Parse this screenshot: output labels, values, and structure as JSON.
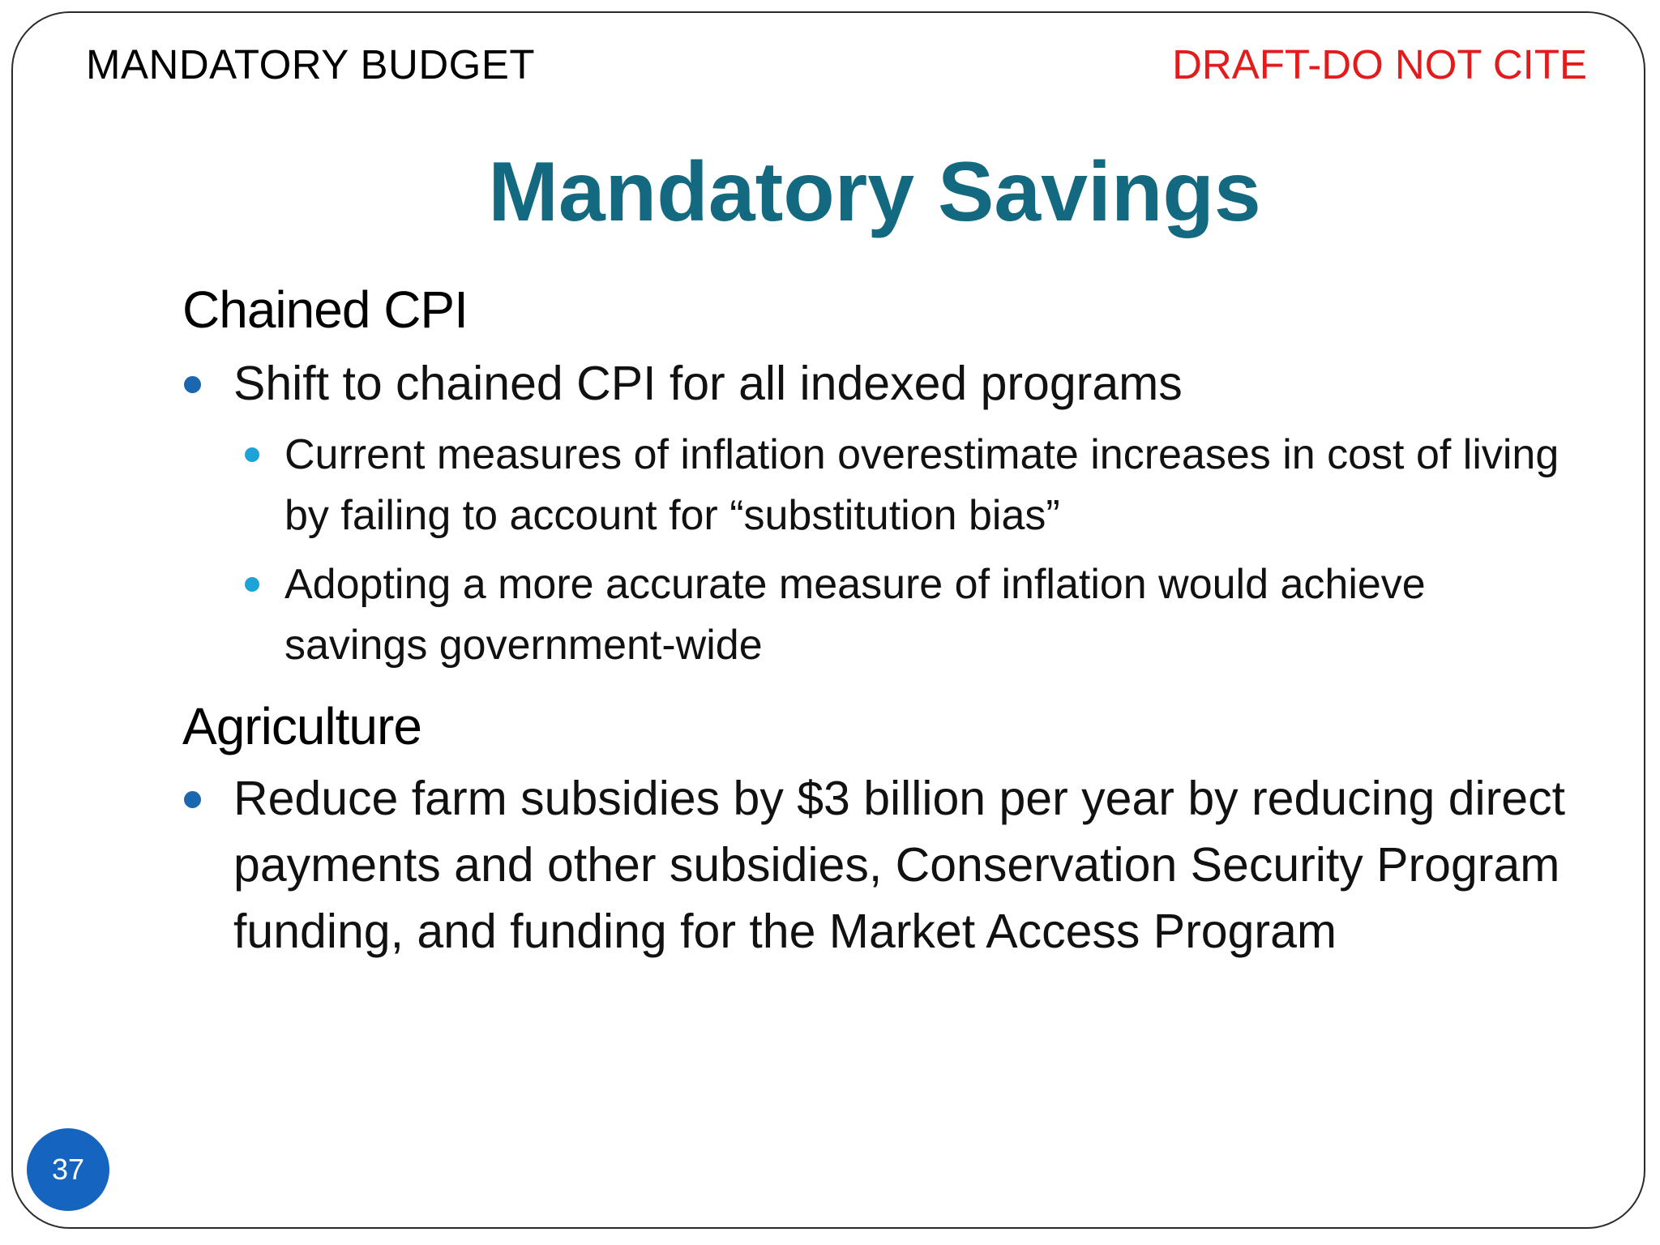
{
  "header": {
    "left": "MANDATORY BUDGET",
    "right": "DRAFT-DO NOT CITE"
  },
  "title": "Mandatory Savings",
  "sections": [
    {
      "heading": "Chained CPI",
      "bullet": "Shift to chained CPI for all indexed programs",
      "subbullets": [
        "Current measures of inflation overestimate increases in cost of living by failing to account for “substitution bias”",
        "Adopting a more accurate measure of inflation would achieve savings government-wide"
      ]
    },
    {
      "heading": "Agriculture",
      "bullet": "Reduce farm subsidies by $3 billion per year by reducing direct payments and other subsidies, Conservation Security Program funding, and funding for the Market Access Program"
    }
  ],
  "page_number": "37",
  "colors": {
    "title": "#136a80",
    "draft_label": "#e31b1b",
    "bullet_level1": "#1a66b0",
    "bullet_level2": "#1ea3d8",
    "page_badge": "#1565c0"
  }
}
